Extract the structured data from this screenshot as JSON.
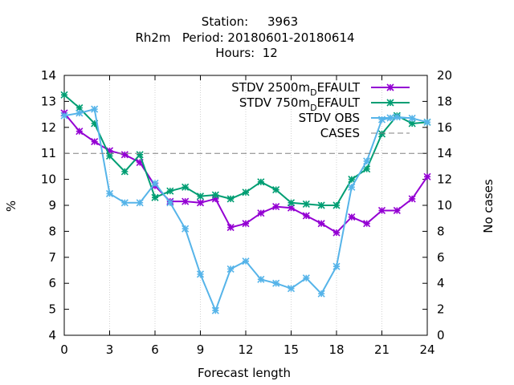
{
  "chart_data": {
    "type": "line",
    "title_lines": [
      "Station:     3963",
      "Rh2m   Period: 20180601-20180614",
      "Hours:  12"
    ],
    "xlabel": "Forecast length",
    "ylabel": "%",
    "y2label": "No cases",
    "xlim": [
      0,
      24
    ],
    "ylim": [
      4,
      14
    ],
    "y2lim": [
      0,
      20
    ],
    "xticks": [
      "0",
      "3",
      "6",
      "9",
      "12",
      "15",
      "18",
      "21",
      "24"
    ],
    "yticks": [
      "4",
      "5",
      "6",
      "7",
      "8",
      "9",
      "10",
      "11",
      "12",
      "13",
      "14"
    ],
    "y2ticks": [
      "0",
      "2",
      "4",
      "6",
      "8",
      "10",
      "12",
      "14",
      "16",
      "18",
      "20"
    ],
    "legend_position": "top-right",
    "x": [
      0,
      1,
      2,
      3,
      4,
      5,
      6,
      7,
      8,
      9,
      10,
      11,
      12,
      13,
      14,
      15,
      16,
      17,
      18,
      19,
      20,
      21,
      22,
      23,
      24
    ],
    "series": [
      {
        "name": "STDV 2500m_DEFAULT",
        "legend_main": "STDV 2500m",
        "legend_sub": "D",
        "legend_rest": "EFAULT",
        "color": "#9400d3",
        "axis": "y1",
        "marker": "x",
        "values": [
          12.55,
          11.85,
          11.45,
          11.1,
          10.95,
          10.65,
          9.75,
          9.15,
          9.15,
          9.1,
          9.25,
          8.15,
          8.3,
          8.7,
          8.95,
          8.9,
          8.6,
          8.3,
          7.95,
          8.55,
          8.3,
          8.8,
          8.8,
          9.25,
          10.1
        ]
      },
      {
        "name": "STDV 750m_DEFAULT",
        "legend_main": "STDV 750m",
        "legend_sub": "D",
        "legend_rest": "EFAULT",
        "color": "#009e73",
        "axis": "y1",
        "marker": "x",
        "values": [
          13.25,
          12.75,
          12.15,
          10.9,
          10.3,
          10.95,
          9.3,
          9.55,
          9.7,
          9.35,
          9.4,
          9.25,
          9.5,
          9.9,
          9.6,
          9.1,
          9.05,
          9.0,
          9.0,
          10.0,
          10.4,
          11.75,
          12.45,
          12.15,
          12.2
        ]
      },
      {
        "name": "STDV OBS",
        "color": "#56b4e9",
        "axis": "y1",
        "marker": "x",
        "values": [
          12.45,
          12.55,
          12.7,
          9.45,
          9.1,
          9.1,
          9.85,
          9.1,
          8.1,
          6.35,
          4.95,
          6.55,
          6.85,
          6.15,
          6.0,
          5.8,
          6.2,
          5.6,
          6.65,
          9.7,
          10.7,
          12.3,
          12.4,
          12.35,
          12.2
        ]
      },
      {
        "name": "CASES",
        "color": "#808080",
        "axis": "y2",
        "style": "dashed",
        "values": [
          14,
          14,
          14,
          14,
          14,
          14,
          14,
          14,
          14,
          14,
          14,
          14,
          14,
          14,
          14,
          14,
          14,
          14,
          14,
          14,
          14,
          14,
          14,
          14,
          14
        ]
      }
    ]
  }
}
